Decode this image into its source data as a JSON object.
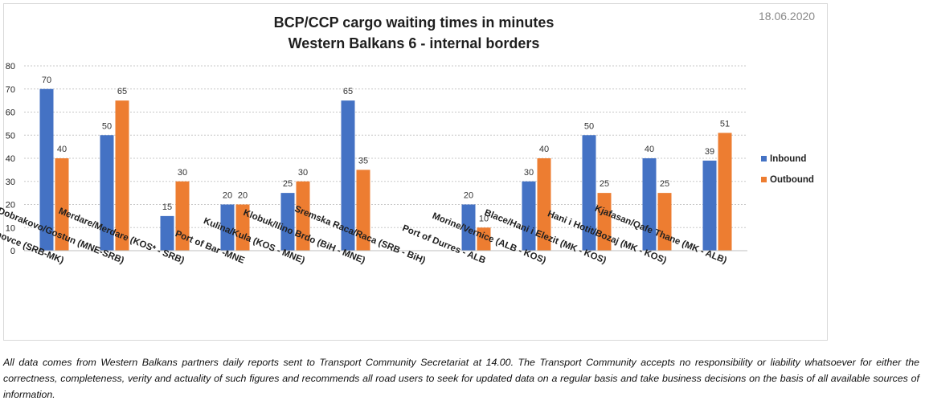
{
  "date": "18.06.2020",
  "disclaimer": "All data comes from Western Balkans partners daily reports sent to Transport Community Secretariat at 14.00. The Transport Community accepts no responsibility or liability whatsoever for either the correctness, completeness, verity and actuality of such figures and recommends all road users to seek for updated data on a regular basis and take business decisions on the basis of all available sources of information.",
  "chart_data": {
    "type": "bar",
    "title": "BCP/CCP cargo waiting times in minutes",
    "subtitle": "Western Balkans 6 - internal borders",
    "xlabel": "",
    "ylabel": "",
    "ylim": [
      0,
      80
    ],
    "yticks": [
      0,
      10,
      20,
      30,
      40,
      50,
      60,
      70,
      80
    ],
    "grid": true,
    "legend_position": "right",
    "categories": [
      "Presevo/ Tabanovce (SRB-MK)",
      "Dobrakovo/Gostun (MNE-SRB)",
      "Merdare/Merdare (KOS* - SRB)",
      "Port of Bar -MNE",
      "Kulina/Kula (KOS - MNE)",
      "Klobuk/Ilino Brdo (BiH - MNE)",
      "Sremska Raca/Raca (SRB - BiH)",
      "Port of Durres - ALB",
      "Morine/Vernice (ALB - KOS)",
      "Blace/Hani i Elezit (MK - KOS)",
      "Hani i Hotit/Bozaj (MK - KOS)",
      "Kjafasan/Qafe Thane (MK - ALB)"
    ],
    "series": [
      {
        "name": "Inbound",
        "color": "#4472c4",
        "values": [
          70,
          50,
          15,
          20,
          25,
          65,
          null,
          20,
          30,
          50,
          40,
          39
        ]
      },
      {
        "name": "Outbound",
        "color": "#ed7d31",
        "values": [
          40,
          65,
          30,
          20,
          30,
          35,
          null,
          10,
          40,
          25,
          25,
          51
        ]
      }
    ]
  }
}
